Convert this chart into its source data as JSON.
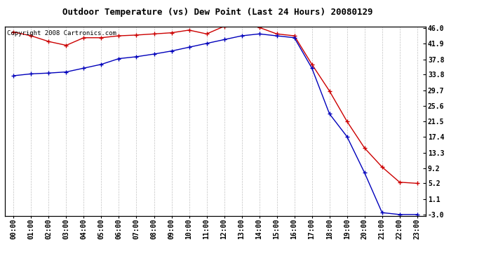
{
  "title": "Outdoor Temperature (vs) Dew Point (Last 24 Hours) 20080129",
  "copyright_text": "Copyright 2008 Cartronics.com",
  "hours": [
    "00:00",
    "01:00",
    "02:00",
    "03:00",
    "04:00",
    "05:00",
    "06:00",
    "07:00",
    "08:00",
    "09:00",
    "10:00",
    "11:00",
    "12:00",
    "13:00",
    "14:00",
    "15:00",
    "16:00",
    "17:00",
    "18:00",
    "19:00",
    "20:00",
    "21:00",
    "22:00",
    "23:00"
  ],
  "temp_red": [
    45.0,
    44.0,
    42.5,
    41.5,
    43.5,
    43.5,
    44.0,
    44.2,
    44.5,
    44.8,
    45.5,
    44.5,
    46.5,
    47.5,
    46.2,
    44.5,
    44.0,
    36.5,
    29.5,
    21.5,
    14.5,
    9.5,
    5.5,
    5.2
  ],
  "temp_blue": [
    33.5,
    34.0,
    34.2,
    34.5,
    35.5,
    36.5,
    38.0,
    38.5,
    39.2,
    40.0,
    41.0,
    42.0,
    43.0,
    44.0,
    44.5,
    44.0,
    43.5,
    35.5,
    23.5,
    17.5,
    8.0,
    -2.5,
    -3.0,
    -3.0
  ],
  "yticks": [
    46.0,
    41.9,
    37.8,
    33.8,
    29.7,
    25.6,
    21.5,
    17.4,
    13.3,
    9.2,
    5.2,
    1.1,
    -3.0
  ],
  "ymin": -3.0,
  "ymax": 46.0,
  "red_color": "#cc0000",
  "blue_color": "#0000bb",
  "grid_color": "#bbbbbb",
  "bg_color": "#ffffff",
  "title_fontsize": 9,
  "copyright_fontsize": 6.5,
  "tick_fontsize": 7,
  "marker_size": 4
}
